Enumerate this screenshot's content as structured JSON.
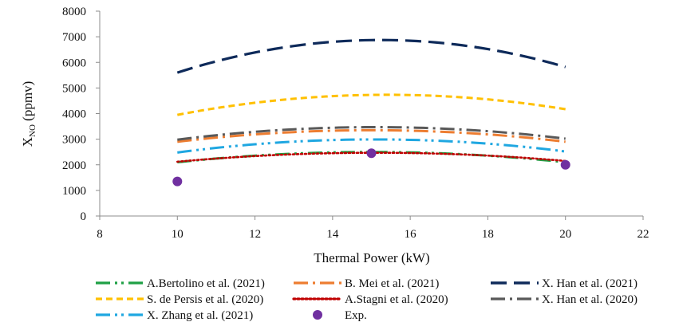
{
  "chart_data": {
    "type": "line",
    "title": "",
    "xlabel": "Thermal Power (kW)",
    "ylabel_main": "X",
    "ylabel_sub": "NO",
    "ylabel_unit": " (ppmv)",
    "xlim": [
      8,
      22
    ],
    "ylim": [
      0,
      8000
    ],
    "xticks": [
      "8",
      "10",
      "12",
      "14",
      "16",
      "18",
      "20",
      "22"
    ],
    "yticks": [
      "0",
      "1000",
      "2000",
      "3000",
      "4000",
      "5000",
      "6000",
      "7000",
      "8000"
    ],
    "grid": false,
    "legend_position": "bottom",
    "x": [
      10,
      15,
      20
    ],
    "series": [
      {
        "name": "A.Bertolino et al. (2021)",
        "values": [
          2100,
          2500,
          2100
        ],
        "color": "#1fa045",
        "dash": "long-dash-dot-dot"
      },
      {
        "name": "B. Mei et al. (2021)",
        "values": [
          2900,
          3350,
          2900
        ],
        "color": "#ed7d31",
        "dash": "long-dash-dot"
      },
      {
        "name": "X. Han et al. (2021)",
        "values": [
          5600,
          6870,
          5820
        ],
        "color": "#0e2a5a",
        "dash": "long-dash"
      },
      {
        "name": "S. de Persis et al. (2020)",
        "values": [
          3950,
          4730,
          4170
        ],
        "color": "#ffc000",
        "dash": "dash"
      },
      {
        "name": "A.Stagni et al. (2020)",
        "values": [
          2120,
          2470,
          2150
        ],
        "color": "#c00000",
        "dash": "dot"
      },
      {
        "name": "X. Han et al. (2020)",
        "values": [
          2980,
          3470,
          3020
        ],
        "color": "#595959",
        "dash": "long-dash-dot"
      },
      {
        "name": "X. Zhang et al. (2021)",
        "values": [
          2480,
          2990,
          2520
        ],
        "color": "#1fa7e1",
        "dash": "long-dash-dot-dot"
      }
    ],
    "scatter": {
      "name": "Exp.",
      "x": [
        10,
        15,
        20
      ],
      "values": [
        1350,
        2450,
        2000
      ],
      "color": "#7030a0"
    }
  }
}
